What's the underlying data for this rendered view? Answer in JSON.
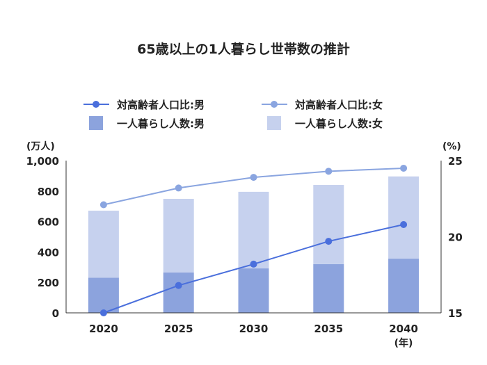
{
  "chart_data": {
    "type": "bar+line",
    "title": "65歳以上の1人暮らし世帯数の推計",
    "categories": [
      "2020",
      "2025",
      "2030",
      "2035",
      "2040"
    ],
    "xlabel": "(年)",
    "ylabel_left": "(万人)",
    "ylabel_right": "(%)",
    "ylim_left": [
      0,
      1000
    ],
    "yticks_left": [
      "0",
      "200",
      "400",
      "600",
      "800",
      "1,000"
    ],
    "ylim_right": [
      15,
      25
    ],
    "yticks_right": [
      "15",
      "20",
      "25"
    ],
    "legend": [
      "対高齢者人口比:男",
      "対高齢者人口比:女",
      "一人暮らし人数:男",
      "一人暮らし人数:女"
    ],
    "bars_stacked": [
      {
        "name": "一人暮らし人数:男",
        "values": [
          231,
          265,
          292,
          320,
          356
        ],
        "color": "#8ca3dd"
      },
      {
        "name": "一人暮らし人数:女",
        "values": [
          440,
          484,
          503,
          520,
          540
        ],
        "color": "#c6d1ee"
      }
    ],
    "lines": [
      {
        "name": "対高齢者人口比:男",
        "axis": "right",
        "values": [
          15.0,
          16.8,
          18.2,
          19.7,
          20.8
        ],
        "color": "#4a6fdc"
      },
      {
        "name": "対高齢者人口比:女",
        "axis": "right",
        "values": [
          22.1,
          23.2,
          23.9,
          24.3,
          24.5
        ],
        "color": "#8aa5e0"
      }
    ],
    "grid": false,
    "legend_position": "top"
  }
}
